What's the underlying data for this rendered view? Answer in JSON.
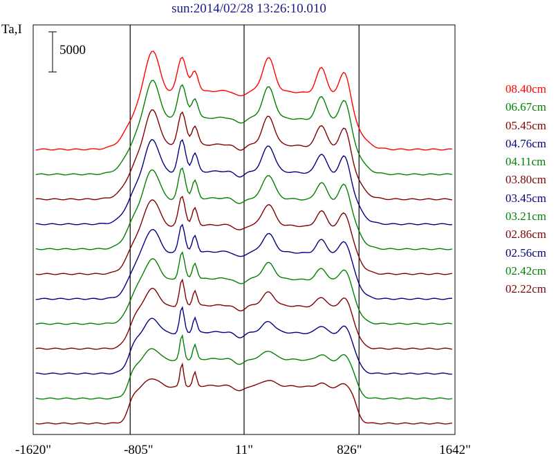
{
  "title": "sun:2014/02/28 13:26:10.010",
  "y_axis_label": "Ta,I",
  "scale_bar_label": "5000",
  "chart_data": {
    "type": "line",
    "x_unit": "arcsec",
    "xlim": [
      -1620,
      1642
    ],
    "x_ticks": [
      "-1620\"",
      "-805\"",
      "11\"",
      "826\"",
      "1642\""
    ],
    "reference_lines_x": [
      -870,
      11,
      900
    ],
    "scale_bar": 5000,
    "series": [
      {
        "name": "08.40cm",
        "color": "#ff0000"
      },
      {
        "name": "06.67cm",
        "color": "#008000"
      },
      {
        "name": "05.45cm",
        "color": "#800000"
      },
      {
        "name": "04.76cm",
        "color": "#000080"
      },
      {
        "name": "04.11cm",
        "color": "#008000"
      },
      {
        "name": "03.80cm",
        "color": "#800000"
      },
      {
        "name": "03.45cm",
        "color": "#000080"
      },
      {
        "name": "03.21cm",
        "color": "#008000"
      },
      {
        "name": "02.86cm",
        "color": "#800000"
      },
      {
        "name": "02.56cm",
        "color": "#000080"
      },
      {
        "name": "02.42cm",
        "color": "#008000"
      },
      {
        "name": "02.22cm",
        "color": "#800000"
      }
    ]
  }
}
